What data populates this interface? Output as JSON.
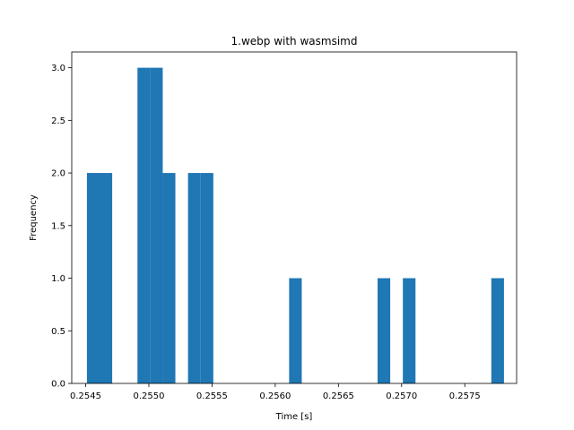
{
  "chart_data": {
    "type": "bar",
    "title": "1.webp with wasmsimd",
    "xlabel": "Time [s]",
    "ylabel": "Frequency",
    "xlim": [
      0.25439,
      0.25791
    ],
    "ylim": [
      0,
      3.15
    ],
    "grid": false,
    "legend": "none",
    "bar_color": "#1f77b4",
    "bin_width": 0.0001,
    "bins": [
      {
        "x0": 0.25451,
        "x1": 0.25461,
        "count": 2
      },
      {
        "x0": 0.25461,
        "x1": 0.25471,
        "count": 2
      },
      {
        "x0": 0.25491,
        "x1": 0.25501,
        "count": 3
      },
      {
        "x0": 0.25501,
        "x1": 0.25511,
        "count": 3
      },
      {
        "x0": 0.25511,
        "x1": 0.25521,
        "count": 2
      },
      {
        "x0": 0.25531,
        "x1": 0.25541,
        "count": 2
      },
      {
        "x0": 0.25541,
        "x1": 0.25551,
        "count": 2
      },
      {
        "x0": 0.25611,
        "x1": 0.25621,
        "count": 1
      },
      {
        "x0": 0.25681,
        "x1": 0.25691,
        "count": 1
      },
      {
        "x0": 0.25701,
        "x1": 0.25711,
        "count": 1
      },
      {
        "x0": 0.25771,
        "x1": 0.25781,
        "count": 1
      }
    ],
    "x_ticks": [
      {
        "value": 0.2545,
        "label": "0.2545"
      },
      {
        "value": 0.255,
        "label": "0.2550"
      },
      {
        "value": 0.2555,
        "label": "0.2555"
      },
      {
        "value": 0.256,
        "label": "0.2560"
      },
      {
        "value": 0.2565,
        "label": "0.2565"
      },
      {
        "value": 0.257,
        "label": "0.2570"
      },
      {
        "value": 0.2575,
        "label": "0.2575"
      }
    ],
    "y_ticks": [
      {
        "value": 0.0,
        "label": "0.0"
      },
      {
        "value": 0.5,
        "label": "0.5"
      },
      {
        "value": 1.0,
        "label": "1.0"
      },
      {
        "value": 1.5,
        "label": "1.5"
      },
      {
        "value": 2.0,
        "label": "2.0"
      },
      {
        "value": 2.5,
        "label": "2.5"
      },
      {
        "value": 3.0,
        "label": "3.0"
      }
    ]
  }
}
